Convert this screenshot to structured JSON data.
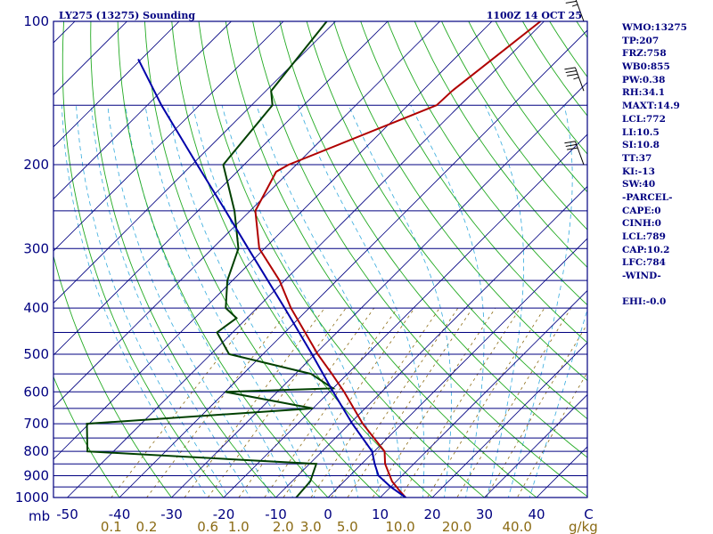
{
  "title_left": "LY275 (13275) Sounding",
  "title_right": "1100Z 14 OCT 25",
  "pressure_unit": "mb",
  "mixing_ratio_unit": "g/kg",
  "stats": [
    "WMO:13275",
    "TP:207",
    "FRZ:758",
    "WB0:855",
    "PW:0.38",
    "RH:34.1",
    "MAXT:14.9",
    "LCL:772",
    "LI:10.5",
    "SI:10.8",
    "TT:37",
    "KI:-13",
    "SW:40",
    "-PARCEL-",
    "CAPE:0",
    "CINH:0",
    "LCL:789",
    "CAP:10.2",
    "LFC:784",
    "-WIND-",
    "",
    "EHI:-0.0"
  ],
  "colors": {
    "frame": "#000080",
    "isobar": "#000080",
    "isotherm": "#000080",
    "dry_adiabat": "#22aa22",
    "moist_adiabat": "#33aadd",
    "mixing_ratio": "#8b6b14",
    "temperature": "#b00000",
    "dewpoint": "#004000",
    "parcel": "#0000aa"
  },
  "chart_data": {
    "type": "line",
    "chart_kind": "skew-T log-P sounding",
    "yscale": "log",
    "ylim": [
      1000,
      100
    ],
    "xlim": [
      -50,
      50
    ],
    "x_axis_unit": "C",
    "pressure_tick_labels": [
      "100",
      "200",
      "300",
      "400",
      "500",
      "600",
      "700",
      "800",
      "900",
      "1000"
    ],
    "temperature_tick_labels": [
      "-50",
      "-40",
      "-30",
      "-20",
      "-10",
      "0",
      "10",
      "20",
      "30",
      "40",
      "C"
    ],
    "mixing_ratio_tick_labels": [
      "0.1",
      "0.2",
      "0.6",
      "1.0",
      "2.0",
      "3.0",
      "5.0",
      "10.0",
      "20.0",
      "40.0"
    ],
    "isobars": [
      1000,
      950,
      900,
      850,
      800,
      750,
      700,
      650,
      600,
      550,
      500,
      450,
      400,
      350,
      300,
      250,
      200,
      150,
      100
    ],
    "series": [
      {
        "key": "temperature",
        "pressure": [
          1000,
          970,
          925,
          850,
          800,
          700,
          600,
          550,
          500,
          400,
          350,
          300,
          250,
          207,
          200,
          150,
          140,
          100
        ],
        "value": [
          14.9,
          12.6,
          9.2,
          4.5,
          2.0,
          -7.5,
          -17.2,
          -23.0,
          -29.5,
          -43.5,
          -51.0,
          -61.0,
          -69.0,
          -72.5,
          -71.5,
          -54.5,
          -54.3,
          -50.7
        ]
      },
      {
        "key": "dewpoint",
        "pressure": [
          1000,
          925,
          850,
          800,
          700,
          650,
          600,
          590,
          550,
          500,
          450,
          420,
          400,
          350,
          300,
          250,
          200,
          150,
          140,
          100
        ],
        "value": [
          -6.1,
          -6.5,
          -8.7,
          -55.0,
          -60.4,
          -20.0,
          -40.0,
          -20.0,
          -27.0,
          -46.5,
          -53.0,
          -52.0,
          -56.0,
          -61.0,
          -65.0,
          -73.0,
          -84.0,
          -86.0,
          -89.0,
          -91.7
        ]
      },
      {
        "key": "parcel",
        "pressure": [
          1000,
          950,
          900,
          850,
          800,
          700,
          600,
          500,
          400,
          300,
          250,
          200,
          150,
          120
        ],
        "value": [
          14.9,
          10.0,
          5.5,
          2.5,
          -0.4,
          -9.5,
          -19.3,
          -30.6,
          -44.7,
          -63.1,
          -74.7,
          -89.0,
          -107.3,
          -120.6
        ]
      }
    ],
    "wind_barbs": [
      {
        "pressure": 140,
        "knots": 35
      },
      {
        "pressure": 200,
        "knots": 30
      },
      {
        "pressure": 100,
        "knots": 25
      }
    ]
  }
}
